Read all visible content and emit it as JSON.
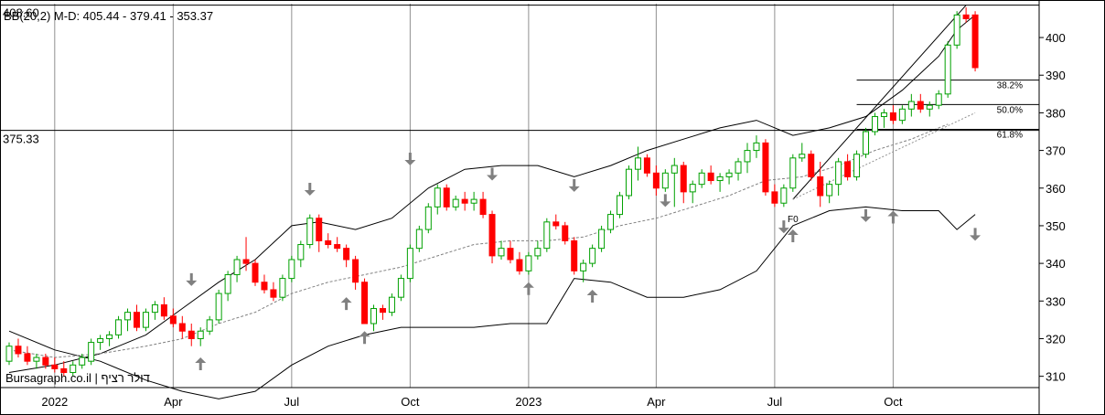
{
  "chart_data": {
    "type": "candlestick",
    "indicator_text": "BB(20,2) M-D: 405.44 - 379.41 - 353.37",
    "indicator_prefix": "BB(20,2)",
    "indicator_values": "M-D: 405.44 - 379.41 - 353.37",
    "watermark": "Bursagraph.co.il | דולר רציף",
    "y_axis": {
      "min": 307,
      "max": 409,
      "ticks": [
        310,
        320,
        330,
        340,
        350,
        360,
        370,
        380,
        390,
        400
      ]
    },
    "x_labels": [
      "2022",
      "Apr",
      "Jul",
      "Oct",
      "2023",
      "Apr",
      "Jul",
      "Oct"
    ],
    "x_label_weeks": [
      5,
      18,
      31,
      44,
      57,
      71,
      84,
      97
    ],
    "weeks_total": 108,
    "levels": [
      {
        "value": 408.6,
        "label": "408.60"
      },
      {
        "value": 375.33,
        "label": "375.33"
      }
    ],
    "fib_levels": [
      {
        "value": 388.7,
        "label": "38.2%"
      },
      {
        "value": 382.2,
        "label": "50.0%"
      },
      {
        "value": 375.6,
        "label": "61.8%"
      }
    ],
    "fib_start_label": "F0",
    "colors": {
      "up": "#00a000",
      "down": "#ff0000",
      "band": "#000000",
      "mid": "#808080",
      "arrow": "#808080"
    },
    "candles": [
      [
        0,
        314,
        319,
        313,
        318
      ],
      [
        1,
        318,
        320,
        315,
        316
      ],
      [
        2,
        316,
        318,
        313,
        314
      ],
      [
        3,
        314,
        316,
        312,
        315
      ],
      [
        4,
        315,
        316,
        312,
        313
      ],
      [
        5,
        313,
        315,
        311,
        312
      ],
      [
        6,
        312,
        314,
        310,
        311
      ],
      [
        7,
        311,
        314,
        310,
        313
      ],
      [
        8,
        313,
        316,
        312,
        315
      ],
      [
        9,
        314,
        320,
        313,
        319
      ],
      [
        10,
        319,
        321,
        317,
        320
      ],
      [
        11,
        320,
        322,
        318,
        321
      ],
      [
        12,
        321,
        326,
        320,
        325
      ],
      [
        13,
        325,
        328,
        322,
        327
      ],
      [
        14,
        327,
        329,
        322,
        323
      ],
      [
        15,
        323,
        328,
        322,
        327
      ],
      [
        16,
        327,
        330,
        325,
        329
      ],
      [
        17,
        329,
        331,
        325,
        326
      ],
      [
        18,
        326,
        328,
        323,
        324
      ],
      [
        19,
        324,
        326,
        320,
        322
      ],
      [
        20,
        322,
        324,
        318,
        320
      ],
      [
        21,
        320,
        323,
        318,
        322
      ],
      [
        22,
        322,
        326,
        321,
        325
      ],
      [
        23,
        325,
        333,
        324,
        332
      ],
      [
        24,
        332,
        338,
        330,
        337
      ],
      [
        25,
        337,
        342,
        335,
        341
      ],
      [
        26,
        341,
        347,
        338,
        340
      ],
      [
        27,
        340,
        341,
        334,
        335
      ],
      [
        28,
        335,
        337,
        332,
        333
      ],
      [
        29,
        333,
        335,
        330,
        331
      ],
      [
        30,
        331,
        337,
        330,
        336
      ],
      [
        31,
        336,
        342,
        335,
        341
      ],
      [
        32,
        341,
        346,
        339,
        345
      ],
      [
        33,
        345,
        353,
        344,
        352
      ],
      [
        34,
        352,
        353,
        343,
        346
      ],
      [
        35,
        346,
        348,
        344,
        345
      ],
      [
        36,
        345,
        347,
        343,
        344
      ],
      [
        37,
        344,
        345,
        339,
        341
      ],
      [
        38,
        341,
        342,
        333,
        335
      ],
      [
        39,
        335,
        336,
        324,
        324
      ],
      [
        40,
        324,
        329,
        322,
        328
      ],
      [
        41,
        328,
        329,
        325,
        327
      ],
      [
        42,
        327,
        332,
        326,
        331
      ],
      [
        43,
        331,
        337,
        330,
        336
      ],
      [
        44,
        336,
        345,
        335,
        344
      ],
      [
        45,
        344,
        350,
        343,
        349
      ],
      [
        46,
        349,
        356,
        348,
        355
      ],
      [
        47,
        355,
        361,
        353,
        360
      ],
      [
        48,
        360,
        361,
        354,
        355
      ],
      [
        49,
        355,
        358,
        354,
        357
      ],
      [
        50,
        357,
        359,
        354,
        356
      ],
      [
        51,
        356,
        359,
        354,
        357
      ],
      [
        52,
        357,
        359,
        352,
        353
      ],
      [
        53,
        353,
        354,
        340,
        342
      ],
      [
        54,
        342,
        346,
        341,
        344
      ],
      [
        55,
        344,
        346,
        340,
        341
      ],
      [
        56,
        341,
        343,
        337,
        338
      ],
      [
        57,
        338,
        343,
        337,
        342
      ],
      [
        58,
        342,
        346,
        341,
        344
      ],
      [
        59,
        344,
        352,
        343,
        351
      ],
      [
        60,
        351,
        353,
        349,
        350
      ],
      [
        61,
        350,
        351,
        345,
        346
      ],
      [
        62,
        346,
        347,
        337,
        338
      ],
      [
        63,
        338,
        341,
        335,
        340
      ],
      [
        64,
        340,
        345,
        339,
        344
      ],
      [
        65,
        344,
        350,
        343,
        349
      ],
      [
        66,
        349,
        354,
        348,
        353
      ],
      [
        67,
        353,
        359,
        352,
        358
      ],
      [
        68,
        358,
        366,
        357,
        365
      ],
      [
        69,
        365,
        371,
        362,
        368
      ],
      [
        70,
        368,
        369,
        363,
        364
      ],
      [
        71,
        364,
        366,
        358,
        360
      ],
      [
        72,
        360,
        365,
        359,
        364
      ],
      [
        73,
        364,
        368,
        355,
        366
      ],
      [
        74,
        366,
        367,
        356,
        359
      ],
      [
        75,
        359,
        362,
        356,
        361
      ],
      [
        76,
        361,
        365,
        360,
        364
      ],
      [
        77,
        364,
        366,
        361,
        362
      ],
      [
        78,
        362,
        364,
        359,
        363
      ],
      [
        79,
        363,
        365,
        361,
        364
      ],
      [
        80,
        364,
        368,
        362,
        367
      ],
      [
        81,
        367,
        372,
        364,
        370
      ],
      [
        82,
        370,
        374,
        368,
        372
      ],
      [
        83,
        372,
        373,
        358,
        359
      ],
      [
        84,
        359,
        361,
        355,
        356
      ],
      [
        85,
        356,
        361,
        355,
        360
      ],
      [
        86,
        360,
        369,
        359,
        368
      ],
      [
        87,
        368,
        372,
        367,
        369
      ],
      [
        88,
        369,
        370,
        362,
        363
      ],
      [
        89,
        363,
        367,
        355,
        358
      ],
      [
        90,
        358,
        362,
        356,
        361
      ],
      [
        91,
        361,
        368,
        358,
        367
      ],
      [
        92,
        367,
        369,
        362,
        363
      ],
      [
        93,
        363,
        370,
        362,
        369
      ],
      [
        94,
        369,
        376,
        368,
        375
      ],
      [
        95,
        375,
        380,
        374,
        379
      ],
      [
        96,
        379,
        381,
        376,
        380
      ],
      [
        97,
        380,
        382,
        377,
        378
      ],
      [
        98,
        378,
        382,
        377,
        381
      ],
      [
        99,
        381,
        385,
        379,
        383
      ],
      [
        100,
        383,
        385,
        380,
        381
      ],
      [
        101,
        381,
        383,
        379,
        382
      ],
      [
        102,
        382,
        386,
        381,
        385
      ],
      [
        103,
        385,
        399,
        384,
        398
      ],
      [
        104,
        398,
        407,
        397,
        406
      ],
      [
        105,
        406,
        408,
        404,
        405
      ],
      [
        106,
        406,
        407,
        391,
        392
      ]
    ],
    "bands": {
      "upper": [
        [
          0,
          311
        ],
        [
          5,
          313
        ],
        [
          10,
          316
        ],
        [
          15,
          321
        ],
        [
          19,
          328
        ],
        [
          23,
          335
        ],
        [
          27,
          341
        ],
        [
          31,
          350
        ],
        [
          34,
          351
        ],
        [
          38,
          349
        ],
        [
          42,
          352
        ],
        [
          46,
          360
        ],
        [
          50,
          365
        ],
        [
          54,
          366
        ],
        [
          58,
          366
        ],
        [
          62,
          363
        ],
        [
          66,
          366
        ],
        [
          70,
          370
        ],
        [
          74,
          373
        ],
        [
          78,
          376
        ],
        [
          82,
          378
        ],
        [
          86,
          374
        ],
        [
          90,
          376
        ],
        [
          94,
          379
        ],
        [
          98,
          386
        ],
        [
          102,
          395
        ],
        [
          104,
          402
        ],
        [
          106,
          406
        ]
      ],
      "middle": [
        [
          0,
          317
        ],
        [
          5,
          315
        ],
        [
          10,
          316
        ],
        [
          15,
          318
        ],
        [
          19,
          320
        ],
        [
          23,
          324
        ],
        [
          27,
          327
        ],
        [
          31,
          332
        ],
        [
          35,
          335
        ],
        [
          39,
          337
        ],
        [
          43,
          339
        ],
        [
          47,
          342
        ],
        [
          51,
          345
        ],
        [
          55,
          346
        ],
        [
          59,
          346
        ],
        [
          63,
          347
        ],
        [
          67,
          350
        ],
        [
          71,
          352
        ],
        [
          75,
          355
        ],
        [
          79,
          358
        ],
        [
          83,
          362
        ],
        [
          87,
          363
        ],
        [
          91,
          366
        ],
        [
          95,
          370
        ],
        [
          99,
          373
        ],
        [
          103,
          377
        ]
      ],
      "lower": [
        [
          0,
          322
        ],
        [
          5,
          317
        ],
        [
          10,
          314
        ],
        [
          15,
          309
        ],
        [
          19,
          306
        ],
        [
          23,
          304
        ],
        [
          27,
          306
        ],
        [
          31,
          313
        ],
        [
          35,
          318
        ],
        [
          39,
          321
        ],
        [
          43,
          323
        ],
        [
          47,
          323
        ],
        [
          51,
          323
        ],
        [
          55,
          324
        ],
        [
          59,
          324
        ],
        [
          62,
          336
        ],
        [
          66,
          335
        ],
        [
          70,
          331
        ],
        [
          74,
          331
        ],
        [
          78,
          333
        ],
        [
          82,
          338
        ],
        [
          86,
          350
        ],
        [
          90,
          354
        ],
        [
          94,
          355
        ],
        [
          98,
          354
        ],
        [
          102,
          354
        ],
        [
          104,
          349
        ],
        [
          106,
          353
        ]
      ]
    },
    "arrows_down": [
      [
        20,
        334
      ],
      [
        33,
        358
      ],
      [
        44,
        366
      ],
      [
        53,
        362
      ],
      [
        62,
        359
      ],
      [
        72,
        355
      ],
      [
        85,
        348
      ],
      [
        94,
        351
      ],
      [
        106,
        346
      ]
    ],
    "arrows_up": [
      [
        21,
        315
      ],
      [
        37,
        331
      ],
      [
        39,
        322
      ],
      [
        57,
        335
      ],
      [
        64,
        333
      ],
      [
        97,
        354
      ],
      [
        86,
        349
      ]
    ]
  }
}
